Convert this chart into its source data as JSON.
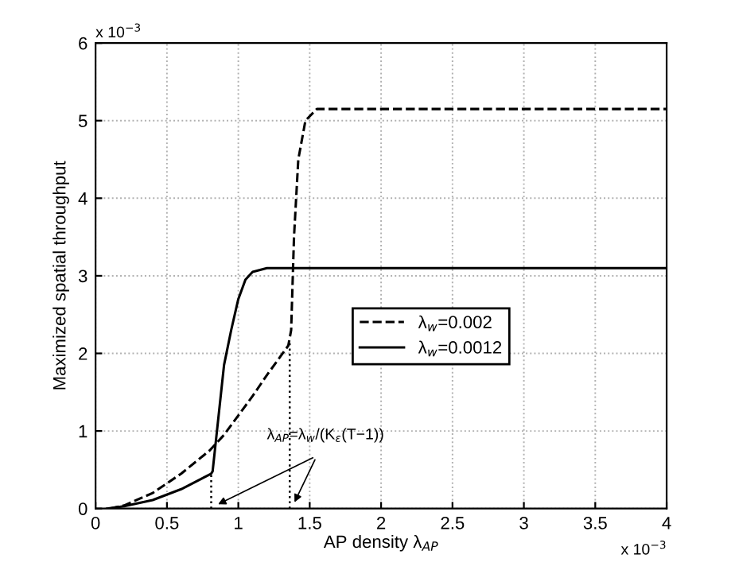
{
  "chart_data": {
    "type": "line",
    "xlabel": "AP density λ$_{AP}$",
    "ylabel": "Maximized spatial throughput",
    "xlim": [
      0,
      4
    ],
    "ylim": [
      0,
      6
    ],
    "xticks": [
      0,
      0.5,
      1,
      1.5,
      2,
      2.5,
      3,
      3.5,
      4
    ],
    "yticks": [
      0,
      1,
      2,
      3,
      4,
      5,
      6
    ],
    "grid": true,
    "legend": "right",
    "series": [
      {
        "name": "λ$_{w}$=0.002",
        "color": "#000000",
        "line_style": "dashed",
        "x": [
          0.1,
          0.2,
          0.4,
          0.6,
          0.8,
          0.9,
          1.0,
          1.1,
          1.2,
          1.35,
          1.37,
          1.39,
          1.42,
          1.47,
          1.55,
          4
        ],
        "values": [
          0,
          0.04,
          0.2,
          0.45,
          0.75,
          0.95,
          1.2,
          1.45,
          1.72,
          2.1,
          2.3,
          3.5,
          4.5,
          5.0,
          5.15,
          5.15
        ]
      },
      {
        "name": "λ$_{w}$=0.0012",
        "color": "#000000",
        "line_style": "solid",
        "x": [
          0.08,
          0.2,
          0.4,
          0.6,
          0.81,
          0.82,
          0.9,
          0.95,
          1.0,
          1.05,
          1.1,
          1.2,
          4
        ],
        "values": [
          0,
          0.03,
          0.11,
          0.25,
          0.45,
          0.48,
          1.85,
          2.3,
          2.7,
          2.95,
          3.05,
          3.1,
          3.1
        ]
      },
      {
        "color": "#000000",
        "line_style": "dotted",
        "x": [
          0.81,
          0.81
        ],
        "values": [
          0,
          0.47
        ]
      },
      {
        "color": "#000000",
        "line_style": "dotted",
        "x": [
          1.36,
          1.36
        ],
        "values": [
          0,
          2.15
        ]
      }
    ],
    "annotations": [
      {
        "text": "λ$_{AP}$=λ$_{w}$/(K$_{ε}$(T−1))",
        "x": 0.83,
        "y": 0
      },
      "x 10$^{−3}$",
      "x 10$^{−3}$"
    ]
  }
}
